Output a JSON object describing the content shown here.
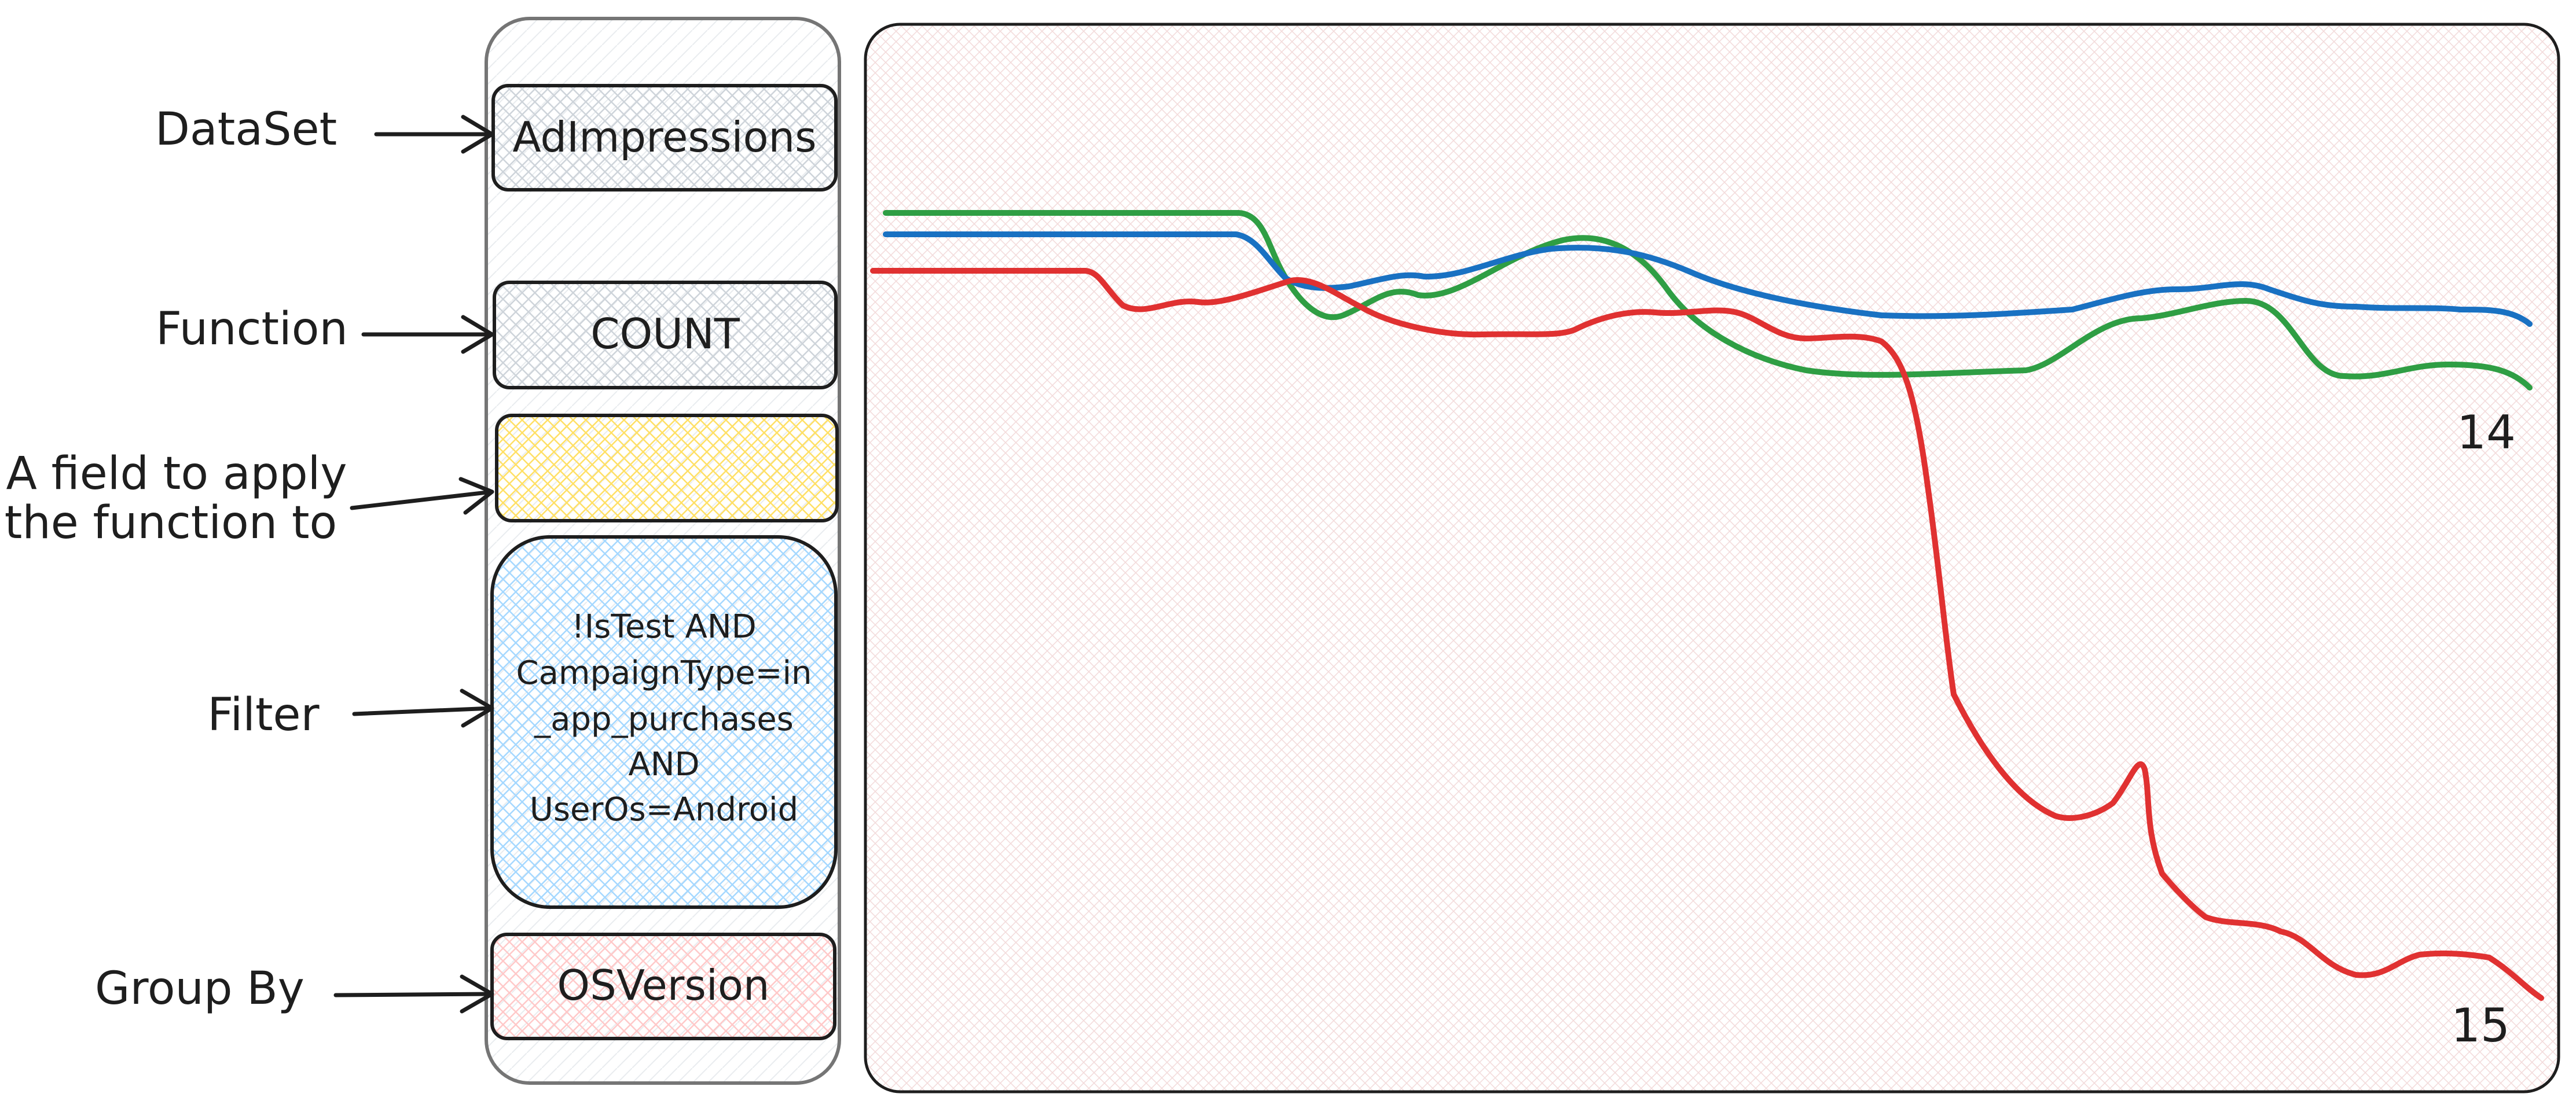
{
  "labels": {
    "dataset": "DataSet",
    "function": "Function",
    "field_line1": "A field to apply",
    "field_line2": "the function to",
    "filter": "Filter",
    "group_by": "Group By"
  },
  "boxes": {
    "dataset_value": "AdImpressions",
    "function_value": "COUNT",
    "field_value": "",
    "filter_lines": [
      "!IsTest AND",
      "CampaignType=in",
      "_app_purchases",
      "AND",
      "UserOs=Android"
    ],
    "group_by_value": "OSVersion"
  },
  "colors": {
    "dataset_fill": "#ced4da",
    "function_fill": "#ced4da",
    "field_fill": "#ffec99",
    "filter_fill": "#a5d8ff",
    "group_by_fill": "#ffc9c9",
    "chart_fill": "#eebefa",
    "panel_stroke": "#757575"
  },
  "chart": {
    "series_labels": [
      "14",
      "15"
    ],
    "colors": {
      "green": "#2f9e44",
      "blue": "#1971c2",
      "red": "#e03131"
    }
  }
}
